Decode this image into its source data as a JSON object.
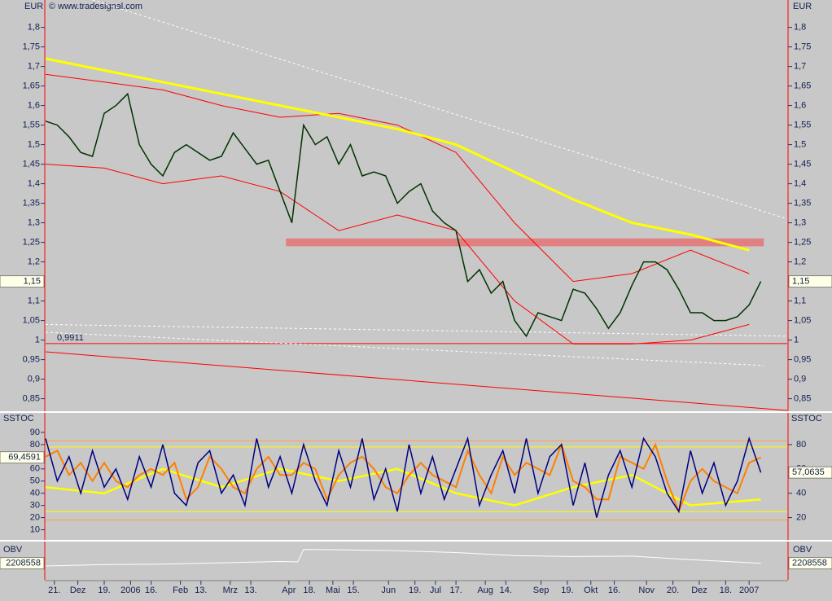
{
  "chart_data": [
    {
      "type": "line",
      "axis_label": "EUR",
      "source": "© www.tradesignal.com",
      "ylim": [
        0.82,
        1.87
      ],
      "xlim": [
        0,
        253
      ],
      "yticks": [
        {
          "value": 1.8,
          "label": "1,8"
        },
        {
          "value": 1.75,
          "label": "1,75"
        },
        {
          "value": 1.7,
          "label": "1,7"
        },
        {
          "value": 1.65,
          "label": "1,65"
        },
        {
          "value": 1.6,
          "label": "1,6"
        },
        {
          "value": 1.55,
          "label": "1,55"
        },
        {
          "value": 1.5,
          "label": "1,5"
        },
        {
          "value": 1.45,
          "label": "1,45"
        },
        {
          "value": 1.4,
          "label": "1,4"
        },
        {
          "value": 1.35,
          "label": "1,35"
        },
        {
          "value": 1.3,
          "label": "1,3"
        },
        {
          "value": 1.25,
          "label": "1,25"
        },
        {
          "value": 1.2,
          "label": "1,2"
        },
        {
          "value": 1.15,
          "label": "1,15"
        },
        {
          "value": 1.1,
          "label": "1,1"
        },
        {
          "value": 1.05,
          "label": "1,05"
        },
        1,
        {
          "value": 0.95,
          "label": "0,95"
        },
        {
          "value": 0.9,
          "label": "0,9"
        },
        {
          "value": 0.85,
          "label": "0,85"
        }
      ],
      "zone": {
        "ylim": [
          1.24,
          1.26
        ],
        "xlim": [
          82,
          245
        ],
        "color": "#e08080"
      },
      "levels": [
        {
          "value": 0.9911,
          "label": "0,9911",
          "color": "#ff0000"
        }
      ],
      "series": [
        {
          "color": "#ffffff",
          "dash": true,
          "width": 1,
          "x": [
            16,
            253
          ],
          "values": [
            1.87,
            1.31
          ]
        },
        {
          "color": "#ffffff",
          "dash": true,
          "width": 1,
          "x": [
            0,
            253
          ],
          "values": [
            1.04,
            1.01
          ]
        },
        {
          "color": "#ffffff",
          "dash": true,
          "width": 1,
          "x": [
            0,
            245
          ],
          "values": [
            1.02,
            0.935
          ]
        },
        {
          "color": "#ff0000",
          "width": 1,
          "x": [
            0,
            253
          ],
          "values": [
            0.97,
            0.82
          ]
        },
        {
          "color": "#ff0000",
          "width": 1,
          "x": [
            0,
            20,
            40,
            60,
            80,
            100,
            120,
            140,
            160,
            180,
            200,
            220,
            240
          ],
          "values": [
            1.68,
            1.66,
            1.64,
            1.6,
            1.57,
            1.58,
            1.55,
            1.48,
            1.3,
            1.15,
            1.17,
            1.23,
            1.17
          ]
        },
        {
          "color": "#ff0000",
          "width": 1,
          "x": [
            0,
            20,
            40,
            60,
            80,
            100,
            120,
            140,
            160,
            180,
            200,
            220,
            240
          ],
          "values": [
            1.45,
            1.44,
            1.4,
            1.42,
            1.38,
            1.28,
            1.32,
            1.28,
            1.1,
            0.99,
            0.99,
            1,
            1.04
          ]
        },
        {
          "color": "#ffff00",
          "width": 3,
          "x": [
            0,
            20,
            40,
            60,
            80,
            100,
            120,
            140,
            160,
            180,
            200,
            220,
            240
          ],
          "values": [
            1.72,
            1.69,
            1.66,
            1.63,
            1.6,
            1.57,
            1.54,
            1.5,
            1.43,
            1.36,
            1.3,
            1.27,
            1.23
          ]
        },
        {
          "color": "#003300",
          "width": 1.5,
          "x": [
            0,
            4,
            8,
            12,
            16,
            20,
            24,
            28,
            32,
            36,
            40,
            44,
            48,
            52,
            56,
            60,
            64,
            68,
            72,
            76,
            80,
            84,
            88,
            92,
            96,
            100,
            104,
            108,
            112,
            116,
            120,
            124,
            128,
            132,
            136,
            140,
            144,
            148,
            152,
            156,
            160,
            164,
            168,
            172,
            176,
            180,
            184,
            188,
            192,
            196,
            200,
            204,
            208,
            212,
            216,
            220,
            224,
            228,
            232,
            236,
            240,
            244
          ],
          "values": [
            1.56,
            1.55,
            1.52,
            1.48,
            1.47,
            1.58,
            1.6,
            1.63,
            1.5,
            1.45,
            1.42,
            1.48,
            1.5,
            1.48,
            1.46,
            1.47,
            1.53,
            1.49,
            1.45,
            1.46,
            1.38,
            1.3,
            1.55,
            1.5,
            1.52,
            1.45,
            1.5,
            1.42,
            1.43,
            1.42,
            1.35,
            1.38,
            1.4,
            1.33,
            1.3,
            1.28,
            1.15,
            1.18,
            1.12,
            1.15,
            1.05,
            1.01,
            1.07,
            1.06,
            1.05,
            1.13,
            1.12,
            1.08,
            1.03,
            1.07,
            1.14,
            1.2,
            1.2,
            1.18,
            1.13,
            1.07,
            1.07,
            1.05,
            1.05,
            1.06,
            1.09,
            1.15
          ],
          "last_value_label": "1,15",
          "label_side": "both"
        }
      ]
    },
    {
      "type": "line",
      "axis_label": "SSTOC",
      "ylim": [
        3,
        100
      ],
      "xlim": [
        0,
        253
      ],
      "yticks": [
        90,
        80,
        70,
        60,
        50,
        40,
        30,
        20,
        10
      ],
      "y2lim": [
        3,
        100
      ],
      "y2ticks": [
        80,
        60,
        40,
        20
      ],
      "levels": [
        {
          "value": 83,
          "color": "#ffa040"
        },
        {
          "value": 78,
          "color": "#ffff00"
        },
        {
          "value": 25,
          "color": "#ffff00"
        },
        {
          "value": 18,
          "color": "#ffa040"
        }
      ],
      "series": [
        {
          "color": "#ffff00",
          "width": 2.5,
          "x": [
            0,
            20,
            40,
            60,
            80,
            100,
            120,
            140,
            160,
            180,
            200,
            220,
            244
          ],
          "values": [
            45,
            40,
            60,
            45,
            60,
            50,
            60,
            40,
            30,
            45,
            55,
            30,
            35
          ]
        },
        {
          "color": "#ff8000",
          "width": 2,
          "x": [
            0,
            4,
            8,
            12,
            16,
            20,
            24,
            28,
            32,
            36,
            40,
            44,
            48,
            52,
            56,
            60,
            64,
            68,
            72,
            76,
            80,
            84,
            88,
            92,
            96,
            100,
            104,
            108,
            112,
            116,
            120,
            124,
            128,
            132,
            136,
            140,
            144,
            148,
            152,
            156,
            160,
            164,
            168,
            172,
            176,
            180,
            184,
            188,
            192,
            196,
            200,
            204,
            208,
            212,
            216,
            220,
            224,
            228,
            232,
            236,
            240,
            244
          ],
          "values": [
            70,
            75,
            55,
            65,
            50,
            65,
            50,
            45,
            55,
            60,
            55,
            65,
            35,
            45,
            70,
            60,
            45,
            40,
            60,
            70,
            55,
            55,
            65,
            60,
            35,
            55,
            65,
            70,
            60,
            45,
            40,
            55,
            65,
            55,
            50,
            45,
            75,
            55,
            40,
            70,
            55,
            65,
            60,
            55,
            80,
            50,
            45,
            35,
            35,
            70,
            65,
            60,
            80,
            50,
            25,
            50,
            60,
            50,
            45,
            40,
            65,
            69.4591
          ],
          "last_value_label": "69,4591",
          "label_side": "left"
        },
        {
          "color": "#000080",
          "width": 1.5,
          "x": [
            0,
            4,
            8,
            12,
            16,
            20,
            24,
            28,
            32,
            36,
            40,
            44,
            48,
            52,
            56,
            60,
            64,
            68,
            72,
            76,
            80,
            84,
            88,
            92,
            96,
            100,
            104,
            108,
            112,
            116,
            120,
            124,
            128,
            132,
            136,
            140,
            144,
            148,
            152,
            156,
            160,
            164,
            168,
            172,
            176,
            180,
            184,
            188,
            192,
            196,
            200,
            204,
            208,
            212,
            216,
            220,
            224,
            228,
            232,
            236,
            240,
            244
          ],
          "values": [
            85,
            50,
            70,
            40,
            75,
            45,
            60,
            35,
            70,
            45,
            80,
            40,
            30,
            65,
            75,
            40,
            55,
            30,
            85,
            45,
            70,
            40,
            80,
            50,
            30,
            75,
            45,
            85,
            35,
            60,
            25,
            80,
            40,
            70,
            35,
            60,
            85,
            30,
            55,
            75,
            40,
            85,
            40,
            70,
            80,
            30,
            65,
            20,
            55,
            75,
            45,
            85,
            70,
            40,
            25,
            75,
            40,
            65,
            30,
            50,
            85,
            57.0635
          ],
          "last_value_label": "57,0635",
          "label_side": "right"
        }
      ]
    },
    {
      "type": "line",
      "axis_label": "OBV",
      "ylim": [
        -1500000,
        6500000
      ],
      "xlim": [
        0,
        253
      ],
      "xticks": [
        {
          "value": 3,
          "label": "21."
        },
        {
          "value": 11,
          "label": "Dez"
        },
        {
          "value": 20,
          "label": "19."
        },
        {
          "value": 29,
          "label": "2006"
        },
        {
          "value": 36,
          "label": "16."
        },
        {
          "value": 46,
          "label": "Feb"
        },
        {
          "value": 53,
          "label": "13."
        },
        {
          "value": 63,
          "label": "Mrz"
        },
        {
          "value": 70,
          "label": "13."
        },
        {
          "value": 83,
          "label": "Apr"
        },
        {
          "value": 90,
          "label": "18."
        },
        {
          "value": 98,
          "label": "Mai"
        },
        {
          "value": 105,
          "label": "15."
        },
        {
          "value": 117,
          "label": "Jun"
        },
        {
          "value": 126,
          "label": "19."
        },
        {
          "value": 133,
          "label": "Jul"
        },
        {
          "value": 140,
          "label": "17."
        },
        {
          "value": 150,
          "label": "Aug"
        },
        {
          "value": 157,
          "label": "14."
        },
        {
          "value": 169,
          "label": "Sep"
        },
        {
          "value": 178,
          "label": "19."
        },
        {
          "value": 186,
          "label": "Okt"
        },
        {
          "value": 194,
          "label": "16."
        },
        {
          "value": 205,
          "label": "Nov"
        },
        {
          "value": 214,
          "label": "20."
        },
        {
          "value": 223,
          "label": "Dez"
        },
        {
          "value": 232,
          "label": "18."
        },
        {
          "value": 240,
          "label": "2007"
        }
      ],
      "series": [
        {
          "color": "#ffffff",
          "width": 1,
          "x": [
            0,
            20,
            40,
            60,
            80,
            86,
            88,
            100,
            120,
            140,
            160,
            180,
            200,
            220,
            244
          ],
          "values": [
            1600000,
            1900000,
            2000000,
            2300000,
            2600000,
            2500000,
            5300000,
            5200000,
            5000000,
            4600000,
            3900000,
            3700000,
            3800000,
            3000000,
            2208558
          ],
          "label_side": "both"
        }
      ]
    }
  ]
}
